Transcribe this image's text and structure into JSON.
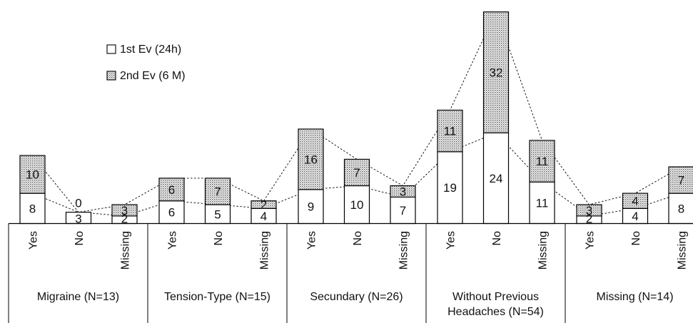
{
  "chart_data": {
    "type": "bar",
    "stacked": true,
    "legend": [
      {
        "name": "1st Ev (24h)",
        "fill": "white"
      },
      {
        "name": "2nd Ev (6 M)",
        "fill": "dotted"
      }
    ],
    "groups": [
      {
        "label": [
          "Migraine (N=13)"
        ],
        "categories": [
          "Yes",
          "No",
          "Missing"
        ],
        "first": [
          8,
          3,
          2
        ],
        "second": [
          10,
          0,
          3
        ]
      },
      {
        "label": [
          "Tension-Type (N=15)"
        ],
        "categories": [
          "Yes",
          "No",
          "Missing"
        ],
        "first": [
          6,
          5,
          4
        ],
        "second": [
          6,
          7,
          2
        ]
      },
      {
        "label": [
          "Secundary (N=26)"
        ],
        "categories": [
          "Yes",
          "No",
          "Missing"
        ],
        "first": [
          9,
          10,
          7
        ],
        "second": [
          16,
          7,
          3
        ]
      },
      {
        "label": [
          "Without Previous",
          "Headaches (N=54)"
        ],
        "categories": [
          "Yes",
          "No",
          "Missing"
        ],
        "first": [
          19,
          24,
          11
        ],
        "second": [
          11,
          32,
          11
        ]
      },
      {
        "label": [
          "Missing (N=14)"
        ],
        "categories": [
          "Yes",
          "No",
          "Missing"
        ],
        "first": [
          2,
          4,
          8
        ],
        "second": [
          3,
          4,
          7
        ]
      }
    ],
    "ylim": [
      0,
      56
    ],
    "connectors": "dashed",
    "colors": {
      "bar_stroke": "#000000",
      "dot": "#555555",
      "background": "#ffffff"
    }
  }
}
